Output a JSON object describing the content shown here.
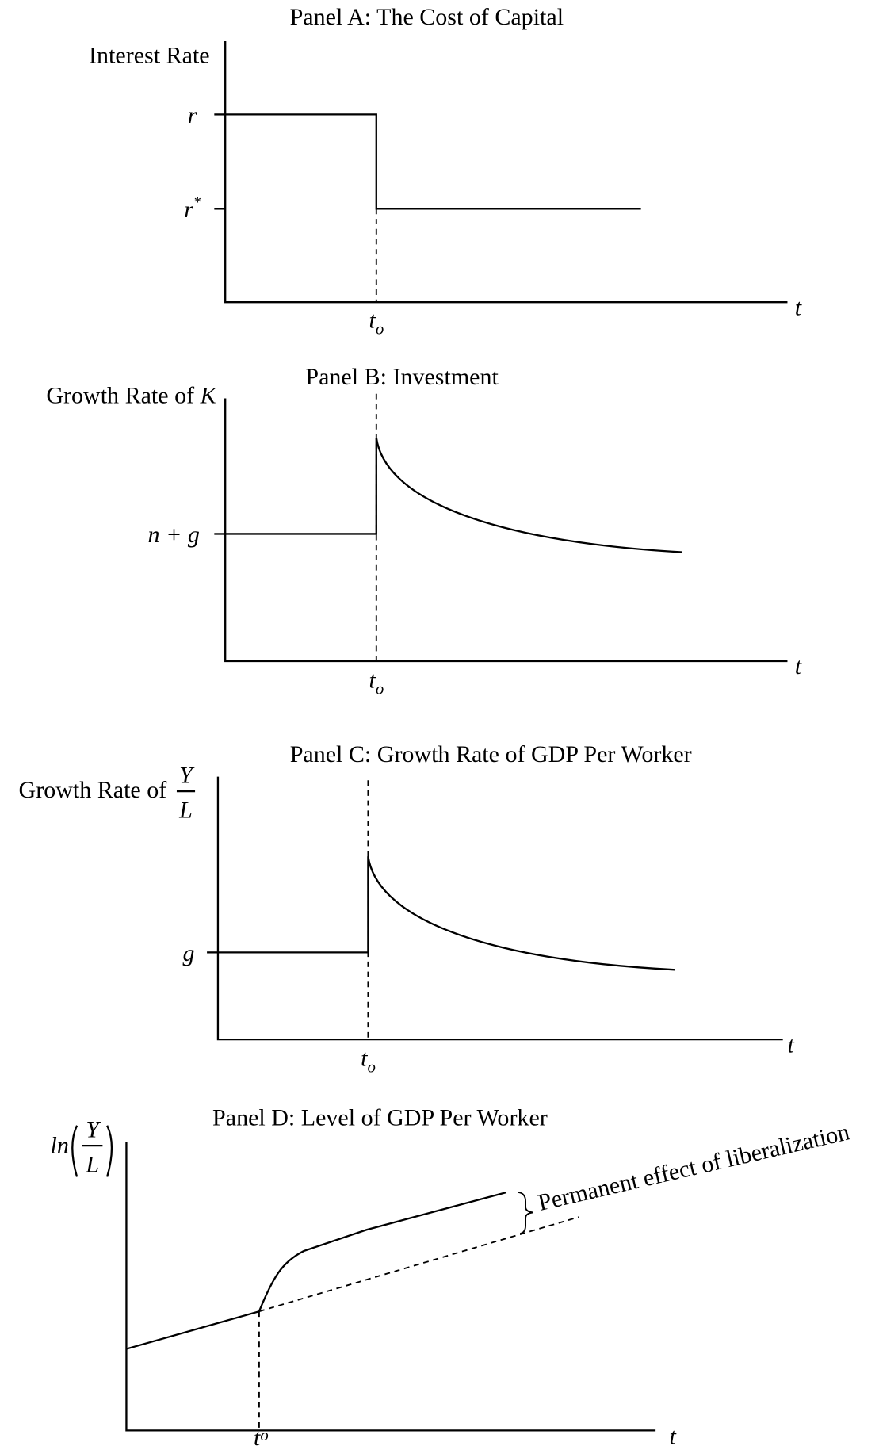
{
  "panels": [
    {
      "title": "Panel A:  The Cost of Capital",
      "y_label": "Interest Rate",
      "x_label": "t",
      "event": {
        "base": "t",
        "sub": "o"
      },
      "y_ticks": [
        {
          "base": "r"
        },
        {
          "base": "r",
          "sup": "*"
        }
      ]
    },
    {
      "title": "Panel B:  Investment",
      "y_label": {
        "text": "Growth Rate of",
        "var": "K"
      },
      "x_label": "t",
      "event": {
        "base": "t",
        "sub": "o"
      },
      "y_ticks": [
        "n + g"
      ]
    },
    {
      "title": "Panel C:  Growth Rate of GDP Per Worker",
      "y_label": {
        "text": "Growth Rate of",
        "numerator": "Y",
        "denominator": "L"
      },
      "x_label": "t",
      "event": {
        "base": "t",
        "sub": "o"
      },
      "y_ticks": [
        "g"
      ]
    },
    {
      "title": "Panel D:  Level of GDP Per Worker",
      "y_label": {
        "function": "ln",
        "numerator": "Y",
        "denominator": "L"
      },
      "x_label": "t",
      "event": {
        "base": "t",
        "sub": "o"
      },
      "annotation": "Permanent effect of liberalization"
    }
  ]
}
